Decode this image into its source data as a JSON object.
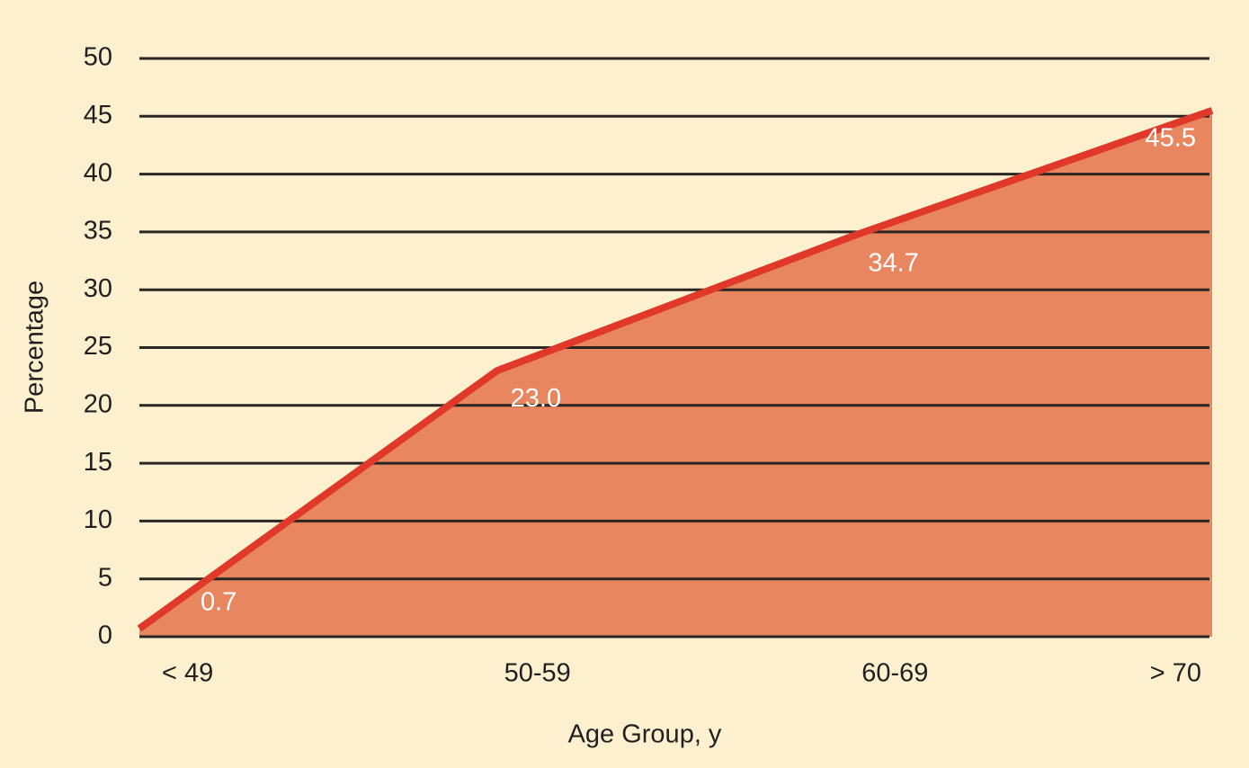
{
  "chart_data": {
    "type": "area",
    "x_label": "Age Group, y",
    "y_label": "Percentage",
    "categories": [
      "< 49",
      "50-59",
      "60-69",
      "> 70"
    ],
    "values": [
      0.7,
      23.0,
      34.7,
      45.5
    ],
    "value_labels": [
      "0.7",
      "23.0",
      "34.7",
      "45.5"
    ],
    "color": "#e0392a",
    "area_color": "#e8865f",
    "ylim": [
      0,
      50
    ],
    "yticks": [
      0,
      5,
      10,
      15,
      20,
      25,
      30,
      35,
      40,
      45,
      50
    ],
    "grid": true
  }
}
